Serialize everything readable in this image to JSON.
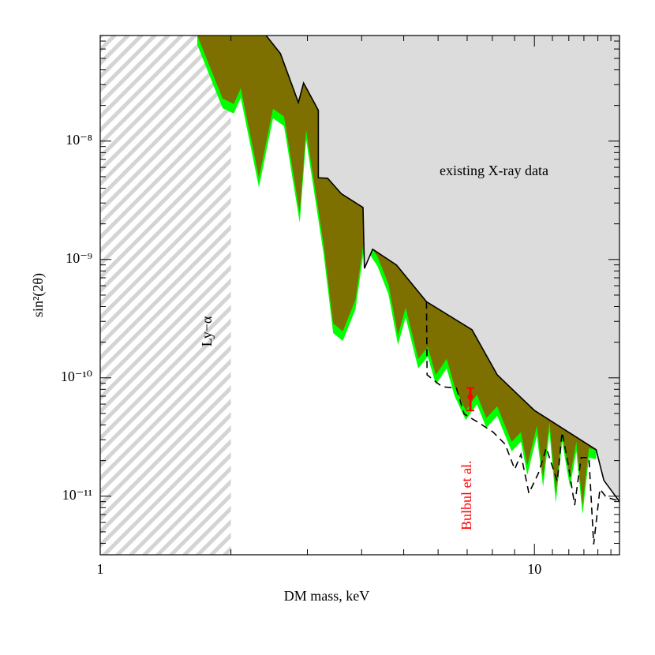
{
  "chart_data": {
    "type": "area",
    "x_label": "DM mass, keV",
    "y_label": "sin²(2θ)",
    "log_x": true,
    "log_y": true,
    "xlim": [
      1,
      15.7
    ],
    "ylim": [
      3.2e-12,
      7.8e-08
    ],
    "xticks": [
      1,
      10
    ],
    "xminor": [
      2,
      3,
      4,
      5,
      6,
      7,
      8,
      9,
      11,
      12,
      13,
      14,
      15
    ],
    "yticks": [
      {
        "value": 1e-11,
        "label": "10⁻¹¹"
      },
      {
        "value": 1e-10,
        "label": "10⁻¹⁰"
      },
      {
        "value": 1e-09,
        "label": "10⁻⁹"
      },
      {
        "value": 1e-08,
        "label": "10⁻⁸"
      }
    ],
    "yminor": [
      4e-12,
      5e-12,
      6e-12,
      7e-12,
      8e-12,
      9e-12,
      2e-11,
      3e-11,
      4e-11,
      5e-11,
      6e-11,
      7e-11,
      8e-11,
      9e-11,
      2e-10,
      3e-10,
      4e-10,
      5e-10,
      6e-10,
      7e-10,
      8e-10,
      9e-10,
      2e-09,
      3e-09,
      4e-09,
      5e-09,
      6e-09,
      7e-09,
      8e-09,
      9e-09,
      2e-08,
      3e-08,
      4e-08,
      5e-08,
      6e-08,
      7e-08
    ],
    "excluded_region": {
      "label": "Ly−α",
      "xlim": [
        1,
        2
      ]
    },
    "series": [
      {
        "fill": "#00ff00",
        "x": [
          1.673,
          1.913,
          2.03,
          2.107,
          2.32,
          2.5,
          2.65,
          2.88,
          2.98,
          3.27,
          3.44,
          3.62,
          3.87,
          4.06,
          4.35,
          4.61,
          4.85,
          5.05,
          5.4,
          5.68,
          5.93,
          6.28,
          6.55,
          6.95,
          7.37,
          7.75,
          8.21,
          8.86,
          9.31,
          9.63,
          10.13,
          10.47,
          10.83,
          11.2,
          11.58,
          12.07,
          12.49,
          12.91,
          13.35,
          13.87
        ],
        "values": [
          6.5e-08,
          1.9e-08,
          1.71e-08,
          2.32e-08,
          4.07e-09,
          1.56e-08,
          1.34e-08,
          2.05e-09,
          1.03e-08,
          1.11e-09,
          2.39e-10,
          2.05e-10,
          3.79e-10,
          1.29e-09,
          8.8e-10,
          5.1e-10,
          1.9e-10,
          3.25e-10,
          1.2e-10,
          1.51e-10,
          8.8e-11,
          1.2e-10,
          7e-11,
          4.4e-11,
          6e-11,
          3.79e-11,
          4.77e-11,
          2.39e-11,
          2.88e-11,
          1.51e-11,
          3.25e-11,
          1.2e-11,
          3.51e-11,
          8.8e-12,
          2.88e-11,
          1.2e-11,
          2.39e-11,
          7e-12,
          2.12e-11,
          2.05e-11
        ]
      },
      {
        "fill": "#7d7000",
        "x": [
          1.673,
          1.913,
          2.03,
          2.107,
          2.32,
          2.5,
          2.65,
          2.88,
          2.98,
          3.27,
          3.44,
          3.62,
          3.87,
          4.06,
          4.35,
          4.61,
          4.85,
          5.05,
          5.4,
          5.68,
          5.93,
          6.28,
          6.55,
          6.95,
          7.37,
          7.75,
          8.21,
          8.86,
          9.31,
          9.63,
          10.13,
          10.47,
          10.83,
          11.2,
          11.58,
          12.07,
          12.49,
          12.91,
          13.35,
          13.87
        ],
        "values": [
          7.8e-08,
          2.29e-08,
          2.06e-08,
          2.8e-08,
          4.9e-09,
          1.88e-08,
          1.61e-08,
          2.47e-09,
          1.24e-08,
          1.34e-09,
          2.88e-10,
          2.47e-10,
          4.57e-10,
          1.56e-09,
          1.06e-09,
          6.2e-10,
          2.29e-10,
          3.92e-10,
          1.45e-10,
          1.82e-10,
          1.06e-10,
          1.45e-10,
          8.4e-11,
          5.3e-11,
          7.2e-11,
          4.57e-11,
          5.75e-11,
          2.88e-11,
          3.47e-11,
          1.82e-11,
          3.92e-11,
          1.45e-11,
          4.23e-11,
          1.06e-11,
          3.47e-11,
          1.45e-11,
          2.88e-11,
          8.4e-12,
          2.55e-11,
          2.47e-11
        ]
      },
      {
        "fill": "#dcdcdc",
        "line": "solid",
        "label": "existing X-ray data",
        "x": [
          2.41,
          2.6,
          2.86,
          2.94,
          3.18,
          3.18,
          3.34,
          3.59,
          4.03,
          4.06,
          4.24,
          4.81,
          5.64,
          7.18,
          8.21,
          10,
          13.87,
          14.45,
          15.7
        ],
        "values": [
          7.8e-08,
          5.5e-08,
          2.12e-08,
          3.1e-08,
          1.82e-08,
          4.9e-09,
          4.85e-09,
          3.6e-09,
          2.75e-09,
          8.4e-10,
          1.22e-09,
          9e-10,
          4.4e-10,
          2.55e-10,
          1.06e-10,
          5.3e-11,
          2.47e-11,
          1.36e-11,
          9e-12
        ]
      },
      {
        "line": "dashed",
        "x": [
          5.64,
          5.66,
          6.13,
          6.61,
          6.89,
          7.4,
          8.04,
          8.56,
          9.01,
          9.31,
          9.71,
          10.21,
          10.65,
          11.29,
          11.58,
          11.97,
          12.38,
          12.81,
          13.35,
          13.69,
          14.15,
          14.64,
          15.7
        ],
        "values": [
          4.4e-10,
          1.06e-10,
          8.4e-11,
          8.2e-11,
          4.94e-11,
          4.23e-11,
          3.47e-11,
          2.75e-11,
          1.69e-11,
          2.26e-11,
          1.06e-11,
          1.56e-11,
          2.55e-11,
          1.34e-11,
          3.47e-11,
          1.82e-11,
          8.4e-12,
          2.12e-11,
          2.12e-11,
          3.92e-12,
          1.15e-11,
          9.8e-12,
          9.1e-12
        ]
      }
    ],
    "error_bar": {
      "label": "Bulbul et al.",
      "color": "#ff0000",
      "x": 7.12,
      "value": 6.9e-11,
      "lower": 5.3e-11,
      "upper": 8.2e-11
    }
  }
}
